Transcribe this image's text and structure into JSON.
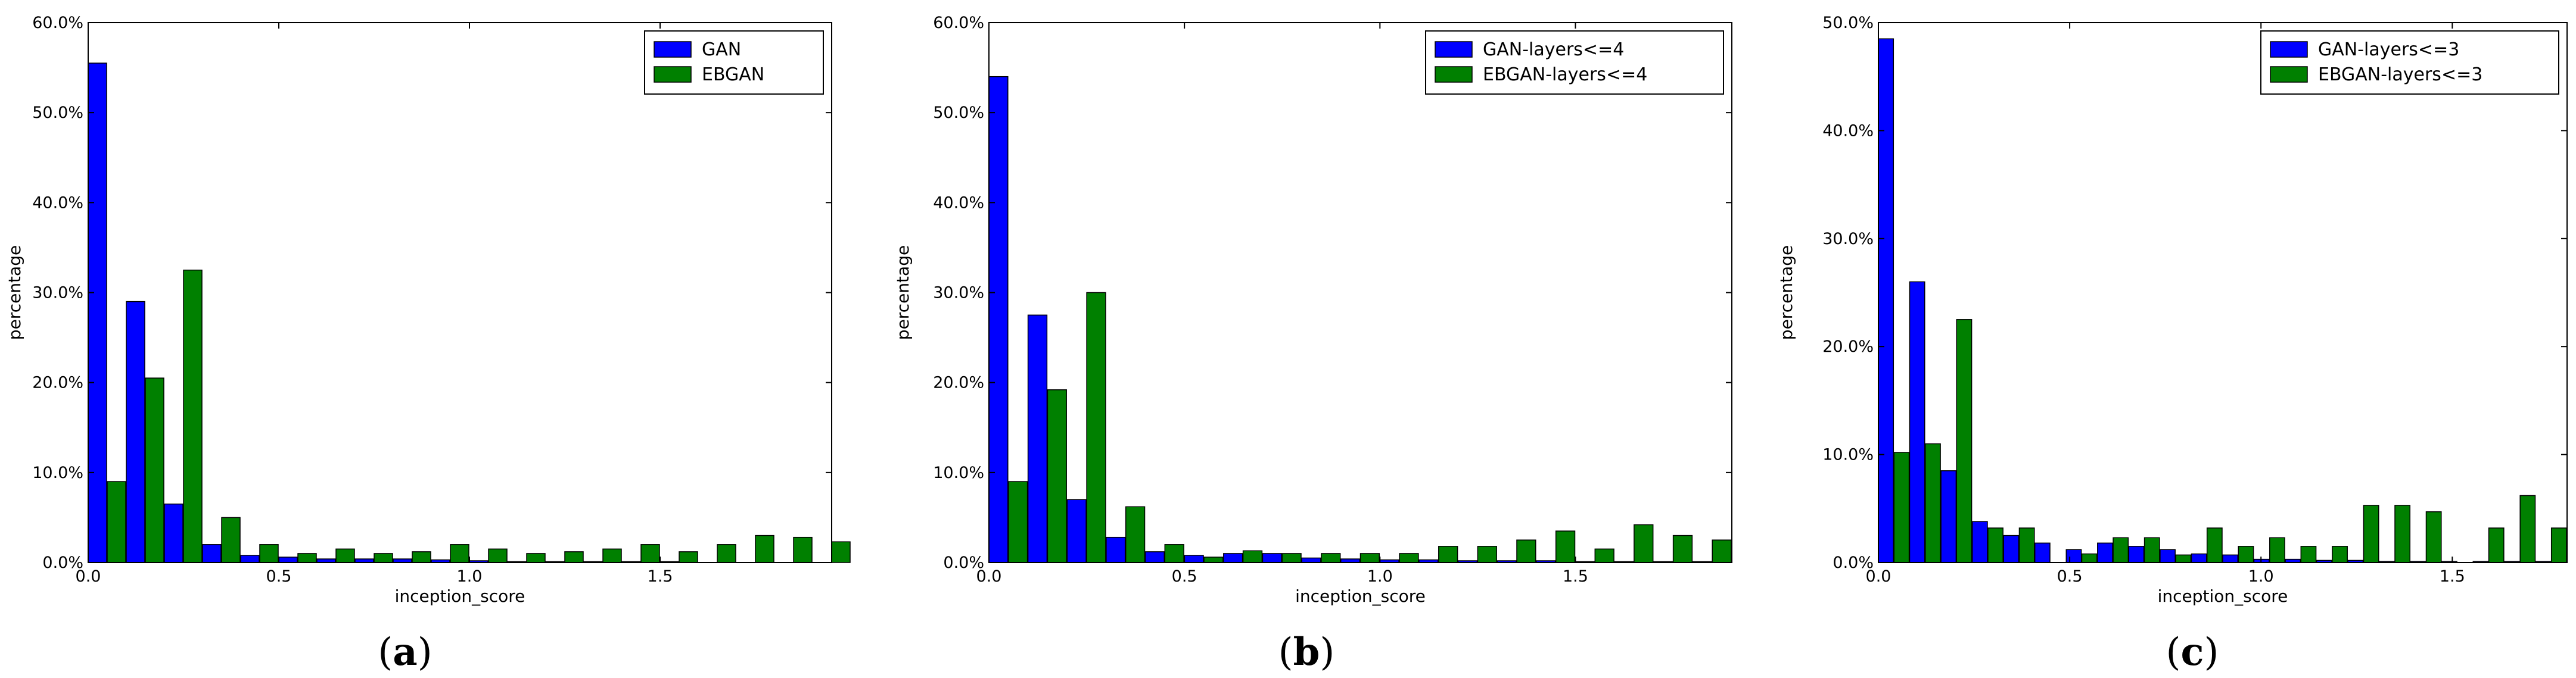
{
  "chart_data": [
    {
      "type": "bar",
      "caption": {
        "open": "(",
        "letter": "a",
        "close": ")"
      },
      "xlabel": "inception_score",
      "ylabel": "percentage",
      "xlim": [
        0,
        1.95
      ],
      "ylim": [
        0,
        60
      ],
      "xticks": [
        0.0,
        0.5,
        1.0,
        1.5
      ],
      "xtick_labels": [
        "0.0",
        "0.5",
        "1.0",
        "1.5"
      ],
      "yticks": [
        0,
        10,
        20,
        30,
        40,
        50,
        60
      ],
      "ytick_labels": [
        "0.0%",
        "10.0%",
        "20.0%",
        "30.0%",
        "40.0%",
        "50.0%",
        "60.0%"
      ],
      "bin_width": 0.1,
      "bin_starts": [
        0.0,
        0.1,
        0.2,
        0.3,
        0.4,
        0.5,
        0.6,
        0.7,
        0.8,
        0.9,
        1.0,
        1.1,
        1.2,
        1.3,
        1.4,
        1.5,
        1.6,
        1.7,
        1.8,
        1.9
      ],
      "legend_position": "top-right",
      "series": [
        {
          "name": "GAN",
          "color": "#0000ff",
          "values": [
            55.5,
            29.0,
            6.5,
            2.0,
            0.8,
            0.6,
            0.4,
            0.4,
            0.4,
            0.3,
            0.2,
            0.1,
            0.1,
            0.1,
            0.1,
            0.1,
            0.0,
            0.0,
            0.0,
            0.0
          ]
        },
        {
          "name": "EBGAN",
          "color": "#008000",
          "values": [
            9.0,
            20.5,
            32.5,
            5.0,
            2.0,
            1.0,
            1.5,
            1.0,
            1.2,
            2.0,
            1.5,
            1.0,
            1.2,
            1.5,
            2.0,
            1.2,
            2.0,
            3.0,
            2.8,
            2.3
          ]
        }
      ]
    },
    {
      "type": "bar",
      "caption": {
        "open": "(",
        "letter": "b",
        "close": ")"
      },
      "xlabel": "inception_score",
      "ylabel": "percentage",
      "xlim": [
        0,
        1.9
      ],
      "ylim": [
        0,
        60
      ],
      "xticks": [
        0.0,
        0.5,
        1.0,
        1.5
      ],
      "xtick_labels": [
        "0.0",
        "0.5",
        "1.0",
        "1.5"
      ],
      "yticks": [
        0,
        10,
        20,
        30,
        40,
        50,
        60
      ],
      "ytick_labels": [
        "0.0%",
        "10.0%",
        "20.0%",
        "30.0%",
        "40.0%",
        "50.0%",
        "60.0%"
      ],
      "bin_width": 0.1,
      "bin_starts": [
        0.0,
        0.1,
        0.2,
        0.3,
        0.4,
        0.5,
        0.6,
        0.7,
        0.8,
        0.9,
        1.0,
        1.1,
        1.2,
        1.3,
        1.4,
        1.5,
        1.6,
        1.7,
        1.8
      ],
      "legend_position": "top-right",
      "series": [
        {
          "name": "GAN-layers<=4",
          "color": "#0000ff",
          "values": [
            54.0,
            27.5,
            7.0,
            2.8,
            1.2,
            0.8,
            1.0,
            1.0,
            0.5,
            0.4,
            0.3,
            0.3,
            0.2,
            0.2,
            0.2,
            0.1,
            0.1,
            0.1,
            0.1
          ]
        },
        {
          "name": "EBGAN-layers<=4",
          "color": "#008000",
          "values": [
            9.0,
            19.2,
            30.0,
            6.2,
            2.0,
            0.6,
            1.3,
            1.0,
            1.0,
            1.0,
            1.0,
            1.8,
            1.8,
            2.5,
            3.5,
            1.5,
            4.2,
            3.0,
            2.5
          ]
        }
      ]
    },
    {
      "type": "bar",
      "caption": {
        "open": "(",
        "letter": "c",
        "close": ")"
      },
      "xlabel": "inception_score",
      "ylabel": "percentage",
      "xlim": [
        0,
        1.8
      ],
      "ylim": [
        0,
        50
      ],
      "xticks": [
        0.0,
        0.5,
        1.0,
        1.5
      ],
      "xtick_labels": [
        "0.0",
        "0.5",
        "1.0",
        "1.5"
      ],
      "yticks": [
        0,
        10,
        20,
        30,
        40,
        50
      ],
      "ytick_labels": [
        "0.0%",
        "10.0%",
        "20.0%",
        "30.0%",
        "40.0%",
        "50.0%"
      ],
      "bin_width": 0.0818,
      "bin_starts": [
        0.0,
        0.0818,
        0.1636,
        0.2455,
        0.3273,
        0.4091,
        0.4909,
        0.5727,
        0.6545,
        0.7364,
        0.8182,
        0.9,
        0.9818,
        1.0636,
        1.1455,
        1.2273,
        1.3091,
        1.3909,
        1.4727,
        1.5545,
        1.6364,
        1.7182
      ],
      "legend_position": "top-right",
      "series": [
        {
          "name": "GAN-layers<=3",
          "color": "#0000ff",
          "values": [
            48.5,
            26.0,
            8.5,
            3.8,
            2.5,
            1.8,
            1.2,
            1.8,
            1.5,
            1.2,
            0.8,
            0.7,
            0.3,
            0.3,
            0.2,
            0.2,
            0.1,
            0.1,
            0.1,
            0.1,
            0.1,
            0.1
          ]
        },
        {
          "name": "EBGAN-layers<=3",
          "color": "#008000",
          "values": [
            10.2,
            11.0,
            22.5,
            3.2,
            3.2,
            0.0,
            0.8,
            2.3,
            2.3,
            0.7,
            3.2,
            1.5,
            2.3,
            1.5,
            1.5,
            5.3,
            5.3,
            4.7,
            0.0,
            3.2,
            6.2,
            3.2
          ]
        }
      ]
    }
  ]
}
